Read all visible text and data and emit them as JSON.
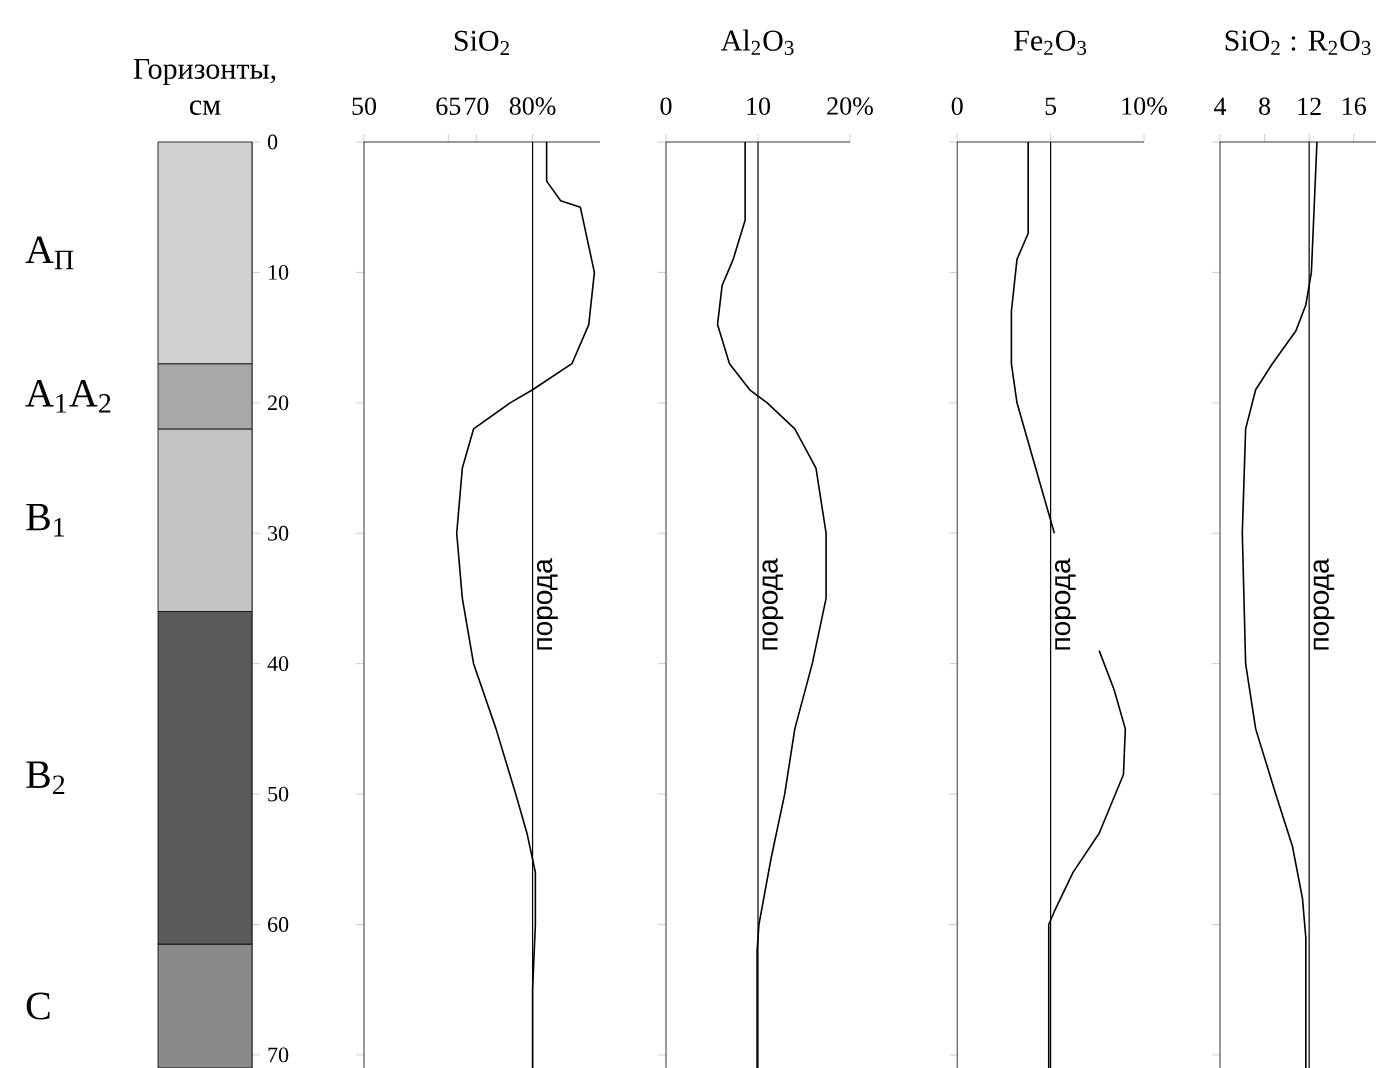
{
  "chart_data": [
    {
      "type": "bar",
      "stacked": true,
      "categories": [
        null
      ],
      "title": "Горизонты, см",
      "ylim": [
        71,
        0
      ],
      "yticks": [
        0,
        10,
        20,
        30,
        40,
        50,
        60,
        70
      ],
      "legend": "left",
      "series": [
        {
          "name": "A$_{П}$",
          "color": "#d0d0d0",
          "values": [
            17
          ]
        },
        {
          "name": "A$_{1}$A$_{2}$",
          "color": "#a8a8a8",
          "values": [
            5
          ]
        },
        {
          "name": "B$_{1}$",
          "color": "#c4c4c4",
          "values": [
            14
          ]
        },
        {
          "name": "B$_{2}$",
          "color": "#5a5a5a",
          "values": [
            25.5
          ]
        },
        {
          "name": "C",
          "color": "#8a8a8a",
          "values": [
            9.5
          ]
        }
      ]
    },
    {
      "type": "line",
      "orientation": "horizontal",
      "title": "SiO$_{2}$",
      "xlim": [
        50,
        92
      ],
      "xticks": [
        50,
        65,
        70,
        {
          "value": 80,
          "label": "80%"
        }
      ],
      "ylim": [
        71,
        0
      ],
      "yticks": [
        0,
        10,
        20,
        30,
        40,
        50,
        60,
        70
      ],
      "tick_labels": "x",
      "color": "#000000",
      "ref_lines": [
        {
          "axis": "x",
          "value": 80,
          "label": "порода"
        }
      ],
      "x": [
        0,
        3,
        4.5,
        5,
        10,
        14,
        17,
        19,
        20,
        22,
        25,
        30,
        35,
        40,
        45,
        50,
        53,
        56,
        60,
        65,
        71
      ],
      "values": [
        82.5,
        82.5,
        85,
        88.5,
        91,
        90,
        87,
        80,
        76,
        69.5,
        67.5,
        66.5,
        67.5,
        69.5,
        73.5,
        77,
        79,
        80.5,
        80.5,
        80,
        80
      ]
    },
    {
      "type": "line",
      "orientation": "horizontal",
      "title": "Al$_{2}$O$_{3}$",
      "xlim": [
        0,
        20
      ],
      "xticks": [
        0,
        10,
        {
          "value": 20,
          "label": "20%"
        }
      ],
      "ylim": [
        71,
        0
      ],
      "yticks": [
        0,
        10,
        20,
        30,
        40,
        50,
        60,
        70
      ],
      "tick_labels": "x",
      "color": "#000000",
      "ref_lines": [
        {
          "axis": "x",
          "value": 10,
          "label": "порода"
        }
      ],
      "x": [
        0,
        6,
        9,
        11,
        14,
        17,
        19,
        20,
        22,
        25,
        30,
        35,
        40,
        45,
        50,
        55,
        60,
        62,
        71
      ],
      "values": [
        8.6,
        8.6,
        7.3,
        6.1,
        5.6,
        6.9,
        9.1,
        11,
        14,
        16.3,
        17.4,
        17.4,
        15.9,
        14,
        12.9,
        11.4,
        10.1,
        9.9,
        9.9
      ]
    },
    {
      "type": "line",
      "orientation": "horizontal",
      "title": "Fe$_{2}$O$_{3}$",
      "xlim": [
        0,
        10
      ],
      "xticks": [
        0,
        5,
        {
          "value": 10,
          "label": "10%"
        }
      ],
      "ylim": [
        71,
        0
      ],
      "yticks": [
        0,
        10,
        20,
        30,
        40,
        50,
        60,
        70
      ],
      "tick_labels": "x",
      "color": "#000000",
      "ref_lines": [
        {
          "axis": "x",
          "value": 5,
          "label": "порода"
        }
      ],
      "x": [
        0,
        7,
        9,
        13,
        17,
        20,
        24,
        30,
        33,
        39,
        42,
        45,
        48.5,
        53,
        56,
        59,
        60,
        71
      ],
      "values": [
        3.8,
        3.8,
        3.2,
        2.9,
        2.9,
        3.2,
        4.0,
        5.2,
        null,
        7.6,
        8.4,
        9.0,
        8.9,
        7.6,
        6.2,
        5.2,
        4.9,
        4.9
      ]
    },
    {
      "type": "line",
      "orientation": "horizontal",
      "title": "SiO$_{2}$ : R$_{2}$O$_{3}$",
      "xlim": [
        4,
        18
      ],
      "xticks": [
        4,
        8,
        12,
        16
      ],
      "ylim": [
        71,
        0
      ],
      "yticks": [
        0,
        10,
        20,
        30,
        40,
        50,
        60,
        70
      ],
      "tick_labels": "x",
      "color": "#000000",
      "ref_lines": [
        {
          "axis": "x",
          "value": 12,
          "label": "порода"
        }
      ],
      "x": [
        0,
        10,
        12.5,
        14.5,
        17,
        19,
        22,
        30,
        40,
        45,
        50,
        54,
        58,
        61,
        71
      ],
      "values": [
        12.7,
        12.2,
        11.7,
        10.8,
        8.7,
        7.2,
        6.3,
        6.0,
        6.3,
        7.2,
        9.0,
        10.5,
        11.4,
        11.7,
        11.7
      ]
    }
  ]
}
